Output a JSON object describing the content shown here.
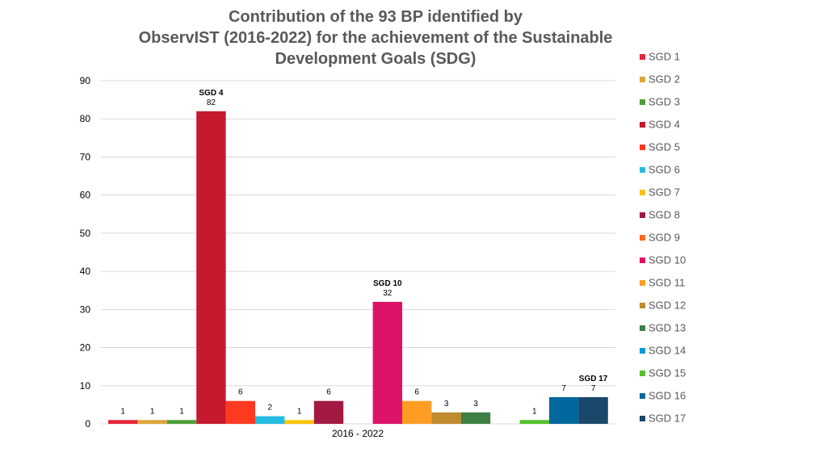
{
  "chart_data": {
    "type": "bar",
    "title_lines": [
      "Contribution of the 93 BP identified by",
      "ObservIST (2016-2022) for the achievement of the Sustainable",
      "Development Goals (SDG)"
    ],
    "categories": [
      "2016 - 2022"
    ],
    "ylim": [
      0,
      90
    ],
    "yticks": [
      0,
      10,
      20,
      30,
      40,
      50,
      60,
      70,
      80,
      90
    ],
    "grid": true,
    "legend_position": "right",
    "series": [
      {
        "name": "SGD 1",
        "values": [
          1
        ],
        "color": "#e5243b",
        "label": "1"
      },
      {
        "name": "SGD 2",
        "values": [
          1
        ],
        "color": "#dda63a",
        "label": "1"
      },
      {
        "name": "SGD 3",
        "values": [
          1
        ],
        "color": "#4c9f38",
        "label": "1"
      },
      {
        "name": "SGD 4",
        "values": [
          82
        ],
        "color": "#c5192d",
        "label": "82",
        "callout": "SGD 4"
      },
      {
        "name": "SGD 5",
        "values": [
          6
        ],
        "color": "#ff3a21",
        "label": "6"
      },
      {
        "name": "SGD 6",
        "values": [
          2
        ],
        "color": "#26bde2",
        "label": "2"
      },
      {
        "name": "SGD 7",
        "values": [
          1
        ],
        "color": "#fcc30b",
        "label": "1"
      },
      {
        "name": "SGD 8",
        "values": [
          6
        ],
        "color": "#a21942",
        "label": "6"
      },
      {
        "name": "SGD 9",
        "values": [
          0
        ],
        "color": "#fd6925",
        "label": ""
      },
      {
        "name": "SGD 10",
        "values": [
          32
        ],
        "color": "#dd1367",
        "label": "32",
        "callout": "SGD 10"
      },
      {
        "name": "SGD 11",
        "values": [
          6
        ],
        "color": "#fd9d24",
        "label": "6"
      },
      {
        "name": "SGD 12",
        "values": [
          3
        ],
        "color": "#bf8b2e",
        "label": "3"
      },
      {
        "name": "SGD 13",
        "values": [
          3
        ],
        "color": "#3f7e44",
        "label": "3"
      },
      {
        "name": "SGD 14",
        "values": [
          0
        ],
        "color": "#0a97d9",
        "label": ""
      },
      {
        "name": "SGD 15",
        "values": [
          1
        ],
        "color": "#56c02b",
        "label": "1"
      },
      {
        "name": "SGD 16",
        "values": [
          7
        ],
        "color": "#00689d",
        "label": "7"
      },
      {
        "name": "SGD 17",
        "values": [
          7
        ],
        "color": "#19486a",
        "label": "7",
        "callout": "SGD 17"
      }
    ]
  }
}
